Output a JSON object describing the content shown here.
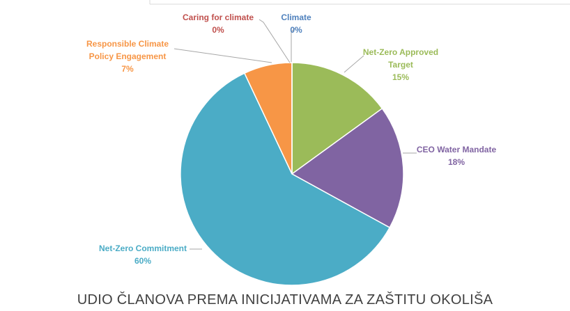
{
  "chart_data": {
    "type": "pie",
    "title": "UDIO ČLANOVA PREMA INICIJATIVAMA ZA ZAŠTITU OKOLIŠA",
    "categories": [
      "Climate",
      "Net-Zero Approved Target",
      "CEO Water Mandate",
      "Net-Zero Commitment",
      "Responsible Climate Policy Engagement",
      "Caring for climate"
    ],
    "values": [
      0,
      15,
      18,
      60,
      7,
      0
    ],
    "value_labels": [
      "0%",
      "15%",
      "18%",
      "60%",
      "7%",
      "0%"
    ],
    "colors": [
      "#4f81bd",
      "#9bbb59",
      "#8064a2",
      "#4bacc6",
      "#f79646",
      "#c0504d"
    ],
    "start_angle": 0,
    "direction": "clockwise"
  }
}
